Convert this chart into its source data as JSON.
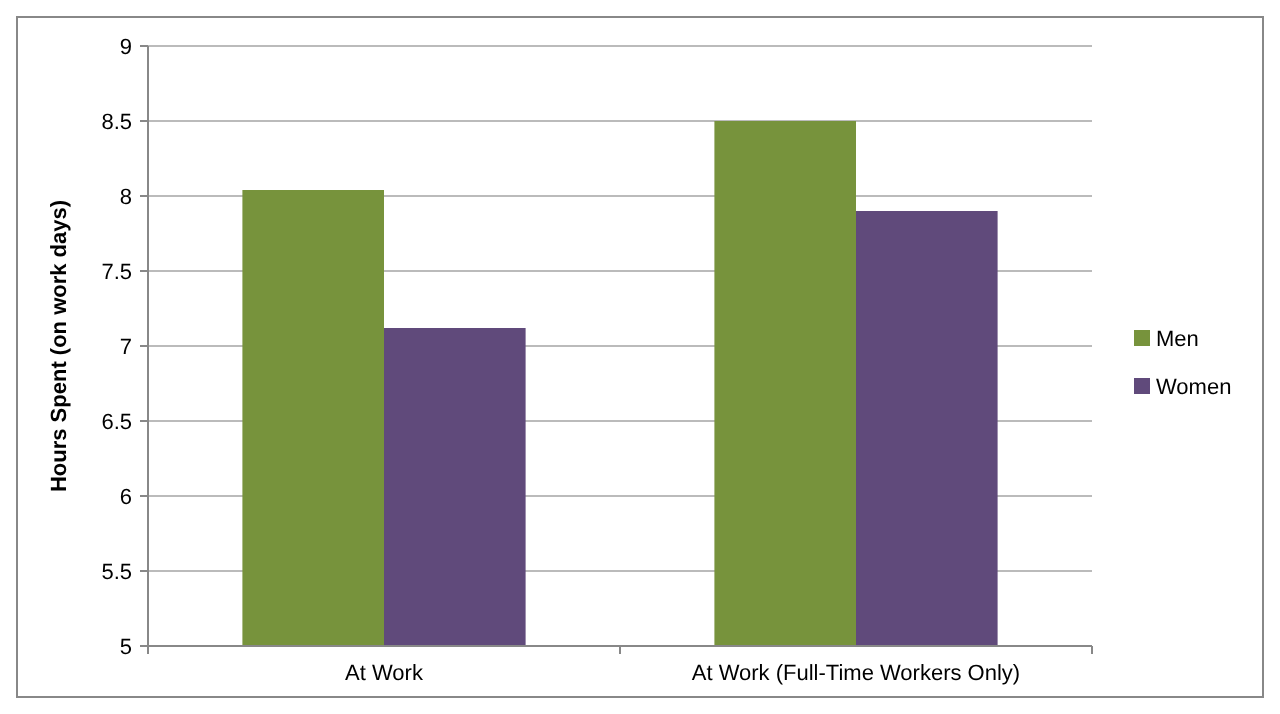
{
  "chart_data": {
    "type": "bar",
    "ylabel": "Hours Spent (on work days)",
    "categories": [
      "At Work",
      "At Work (Full-Time Workers Only)"
    ],
    "series": [
      {
        "name": "Men",
        "color": "#77933c",
        "values": [
          8.04,
          8.5
        ]
      },
      {
        "name": "Women",
        "color": "#604a7b",
        "values": [
          7.12,
          7.9
        ]
      }
    ],
    "ylim": [
      5,
      9
    ],
    "yticks": [
      5,
      5.5,
      6,
      6.5,
      7,
      7.5,
      8,
      8.5,
      9
    ],
    "grid": "y",
    "legend": "right"
  }
}
